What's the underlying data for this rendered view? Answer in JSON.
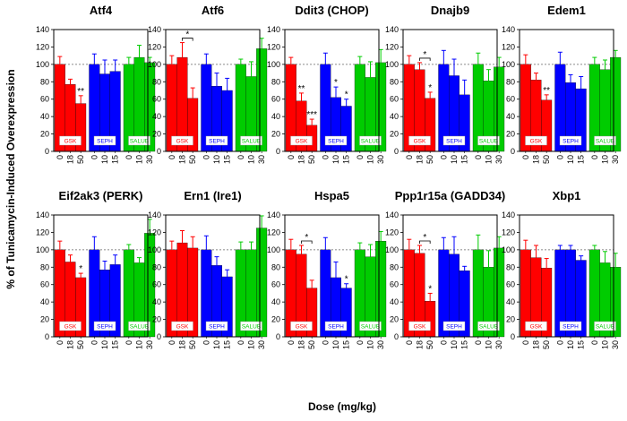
{
  "chart_data": {
    "type": "bar",
    "ylabel": "% of Tunicamycin-Induced Overexpression",
    "xlabel": "Dose (mg/kg)",
    "ylim": [
      0,
      140
    ],
    "yticks": [
      0,
      20,
      40,
      60,
      80,
      100,
      120,
      140
    ],
    "reference_line": 100,
    "categories": [
      "0",
      "18",
      "50",
      "0",
      "10",
      "15",
      "0",
      "10",
      "30"
    ],
    "groups": [
      {
        "name": "GSK",
        "color": "#ff0000"
      },
      {
        "name": "SEPH",
        "color": "#0000ff"
      },
      {
        "name": "SALUB",
        "color": "#00cc00"
      }
    ],
    "panels": [
      {
        "title": "Atf4",
        "values": [
          100,
          77,
          55,
          100,
          89,
          92,
          100,
          108,
          102
        ],
        "errors": [
          9,
          6,
          9,
          12,
          16,
          13,
          8,
          14,
          6
        ],
        "stars": [
          {
            "bar": 2,
            "text": "**"
          }
        ]
      },
      {
        "title": "Atf6",
        "values": [
          100,
          108,
          61,
          100,
          75,
          70,
          100,
          86,
          118
        ],
        "errors": [
          10,
          17,
          12,
          12,
          15,
          14,
          6,
          17,
          12
        ],
        "stars": [],
        "bracket": {
          "from": 1,
          "to": 2,
          "text": "*"
        }
      },
      {
        "title": "Ddit3 (CHOP)",
        "values": [
          100,
          58,
          30,
          100,
          62,
          52,
          100,
          85,
          102
        ],
        "errors": [
          8,
          9,
          7,
          13,
          12,
          8,
          9,
          18,
          15
        ],
        "stars": [
          {
            "bar": 1,
            "text": "**"
          },
          {
            "bar": 2,
            "text": "***"
          },
          {
            "bar": 4,
            "text": "*"
          },
          {
            "bar": 5,
            "text": "*"
          }
        ]
      },
      {
        "title": "Dnajb9",
        "values": [
          100,
          94,
          61,
          100,
          87,
          65,
          100,
          81,
          97
        ],
        "errors": [
          10,
          8,
          7,
          16,
          19,
          17,
          13,
          13,
          11
        ],
        "stars": [
          {
            "bar": 2,
            "text": "*"
          }
        ],
        "bracket": {
          "from": 1,
          "to": 2,
          "text": "*"
        }
      },
      {
        "title": "Edem1",
        "values": [
          100,
          82,
          59,
          100,
          79,
          72,
          100,
          94,
          108
        ],
        "errors": [
          11,
          8,
          6,
          14,
          9,
          14,
          8,
          11,
          8
        ],
        "stars": [
          {
            "bar": 2,
            "text": "**"
          }
        ]
      },
      {
        "title": "Eif2ak3 (PERK)",
        "values": [
          100,
          86,
          68,
          100,
          77,
          83,
          100,
          85,
          119
        ],
        "errors": [
          10,
          8,
          5,
          15,
          10,
          11,
          6,
          6,
          16
        ],
        "stars": [
          {
            "bar": 2,
            "text": "*"
          }
        ]
      },
      {
        "title": "Ern1 (Ire1)",
        "values": [
          100,
          108,
          102,
          100,
          82,
          69,
          100,
          100,
          125
        ],
        "errors": [
          10,
          14,
          13,
          16,
          10,
          8,
          9,
          9,
          14
        ],
        "stars": []
      },
      {
        "title": "Hspa5",
        "values": [
          100,
          95,
          56,
          100,
          68,
          56,
          100,
          92,
          110
        ],
        "errors": [
          12,
          10,
          9,
          14,
          18,
          5,
          8,
          14,
          11
        ],
        "stars": [
          {
            "bar": 5,
            "text": "*"
          }
        ],
        "bracket": {
          "from": 1,
          "to": 2,
          "text": "*"
        }
      },
      {
        "title": "Ppp1r15a (GADD34)",
        "values": [
          100,
          96,
          41,
          100,
          95,
          76,
          100,
          80,
          102
        ],
        "errors": [
          12,
          9,
          9,
          14,
          20,
          5,
          17,
          19,
          13
        ],
        "stars": [
          {
            "bar": 2,
            "text": "*"
          }
        ],
        "bracket": {
          "from": 1,
          "to": 2,
          "text": "*"
        }
      },
      {
        "title": "Xbp1",
        "values": [
          100,
          91,
          79,
          100,
          100,
          88,
          100,
          85,
          80
        ],
        "errors": [
          11,
          14,
          11,
          5,
          5,
          5,
          5,
          13,
          16
        ],
        "stars": []
      }
    ]
  }
}
